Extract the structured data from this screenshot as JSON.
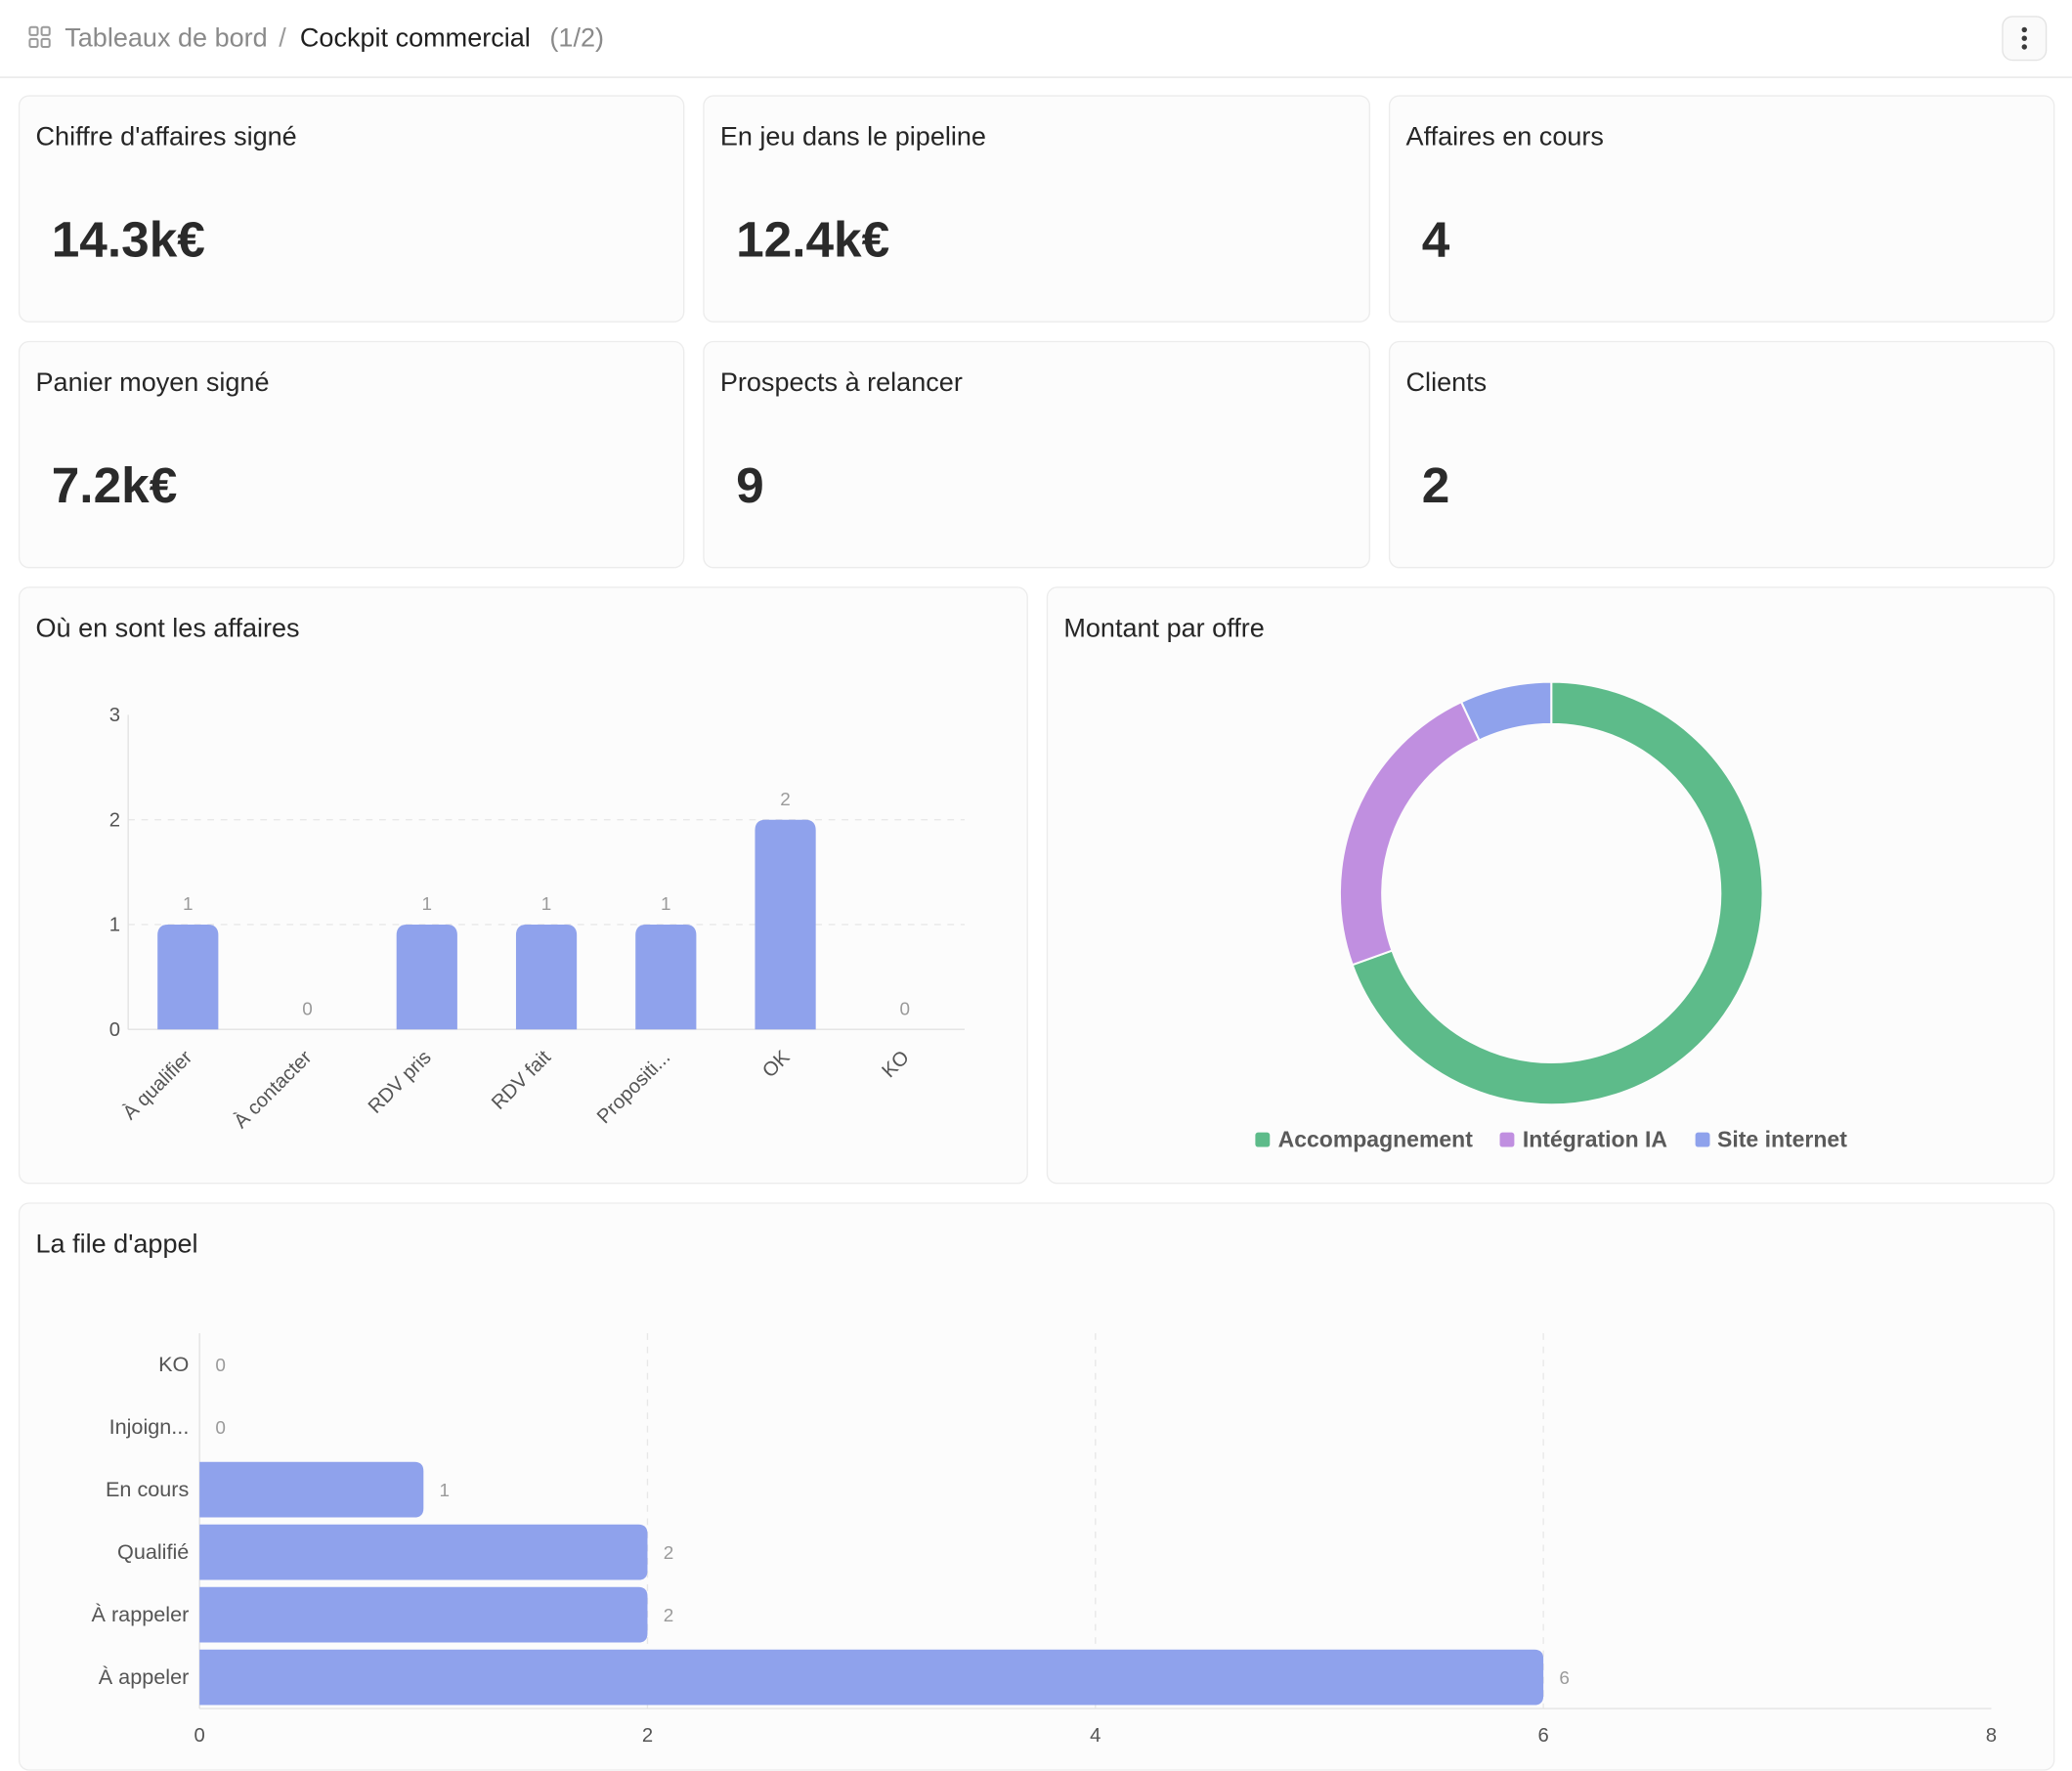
{
  "breadcrumb": {
    "parent": "Tableaux de bord",
    "separator": "/",
    "current": "Cockpit commercial",
    "page": "(1/2)",
    "icon": "dashboard-icon"
  },
  "menu": {
    "icon": "more-vertical-icon"
  },
  "kpis": [
    {
      "label": "Chiffre d'affaires signé",
      "value": "14.3k€"
    },
    {
      "label": "En jeu dans le pipeline",
      "value": "12.4k€"
    },
    {
      "label": "Affaires en cours",
      "value": "4"
    },
    {
      "label": "Panier moyen signé",
      "value": "7.2k€"
    },
    {
      "label": "Prospects à relancer",
      "value": "9"
    },
    {
      "label": "Clients",
      "value": "2"
    }
  ],
  "pipeline_chart_title": "Où en sont les affaires",
  "offer_chart_title": "Montant par offre",
  "call_queue_title": "La file d'appel",
  "colors": {
    "bar": "#8fa2ec",
    "accompagnement": "#5dbb8a",
    "integration_ia": "#c08fe0",
    "site_internet": "#8fa2ec"
  },
  "chart_data": [
    {
      "type": "bar",
      "title": "Où en sont les affaires",
      "categories": [
        "À qualifier",
        "À contacter",
        "RDV pris",
        "RDV fait",
        "Propositi...",
        "OK",
        "KO"
      ],
      "values": [
        1,
        0,
        1,
        1,
        1,
        2,
        0
      ],
      "ylim": [
        0,
        3
      ],
      "yticks": [
        "0",
        "1",
        "2",
        "3"
      ],
      "grid": true
    },
    {
      "type": "pie",
      "title": "Montant par offre",
      "labels": [
        "Accompagnement",
        "Intégration IA",
        "Site internet"
      ],
      "values": [
        69.5,
        23.5,
        7
      ],
      "legend_position": "bottom"
    },
    {
      "type": "bar",
      "orientation": "horizontal",
      "title": "La file d'appel",
      "categories": [
        "KO",
        "Injoign...",
        "En cours",
        "Qualifié",
        "À rappeler",
        "À appeler"
      ],
      "values": [
        0,
        0,
        1,
        2,
        2,
        6
      ],
      "xlim": [
        0,
        8
      ],
      "xticks": [
        "0",
        "2",
        "4",
        "6",
        "8"
      ],
      "grid": true
    }
  ]
}
